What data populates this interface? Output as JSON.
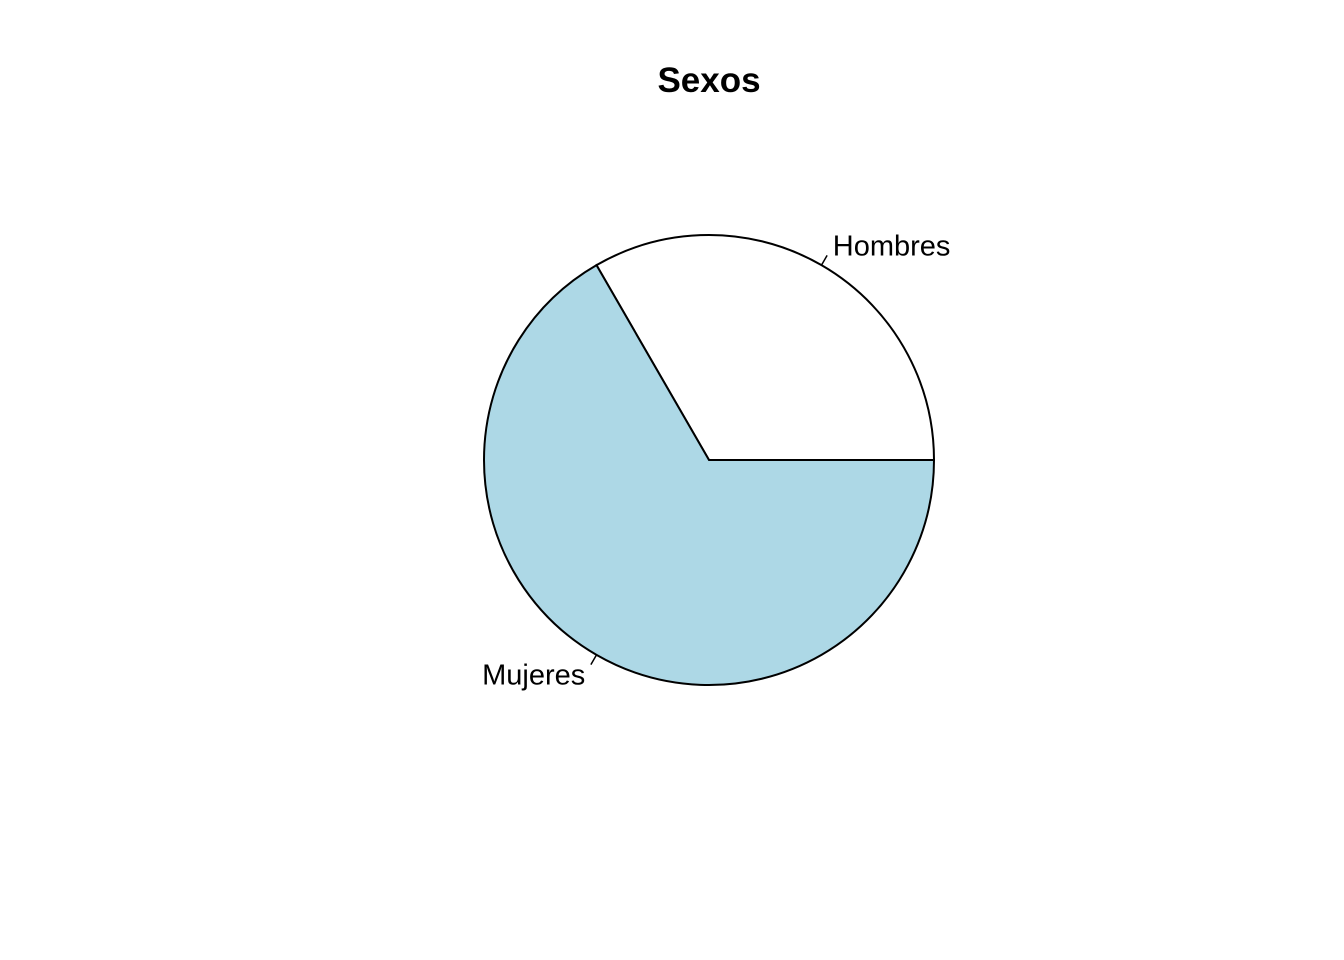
{
  "chart_data": {
    "type": "pie",
    "title": "Sexos",
    "labels": [
      "Hombres",
      "Mujeres"
    ],
    "values": [
      1,
      2
    ],
    "colors": [
      "#FFFFFF",
      "#ADD8E6"
    ],
    "start_angle_deg": 0,
    "direction": "counterclockwise",
    "border_color": "#000000",
    "background_color": "#FFFFFF"
  }
}
